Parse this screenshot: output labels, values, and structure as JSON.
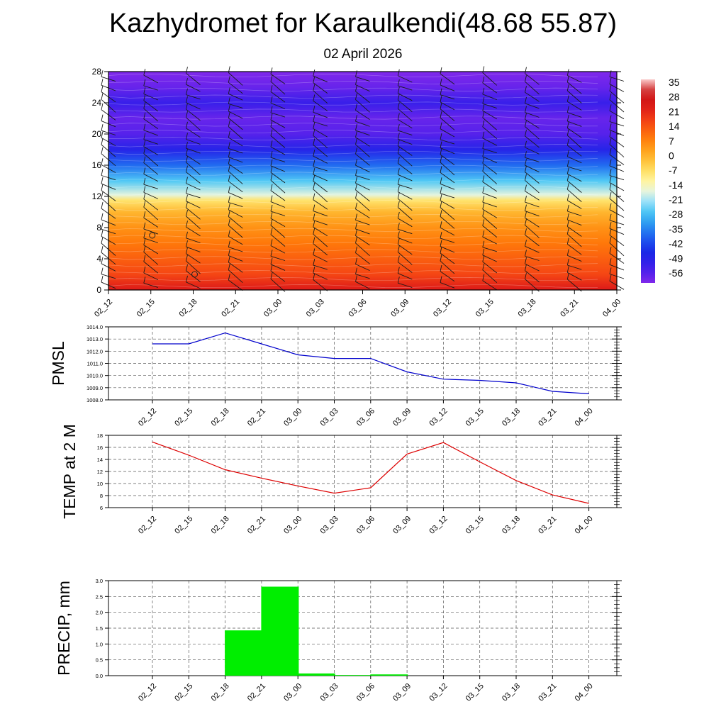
{
  "title": "Kazhydromet for Karaulkendi(48.68 55.87)",
  "subtitle": "02 April 2026",
  "time_labels": [
    "02_12",
    "02_15",
    "02_18",
    "02_21",
    "03_00",
    "03_03",
    "03_06",
    "03_09",
    "03_12",
    "03_15",
    "03_18",
    "03_21",
    "04_00"
  ],
  "chart_data": [
    {
      "type": "heatmap",
      "name": "temperature-wind-cross-section",
      "x": [
        "02_12",
        "02_15",
        "02_18",
        "02_21",
        "03_00",
        "03_03",
        "03_06",
        "03_09",
        "03_12",
        "03_15",
        "03_18",
        "03_21",
        "04_00"
      ],
      "ylim": [
        0,
        28
      ],
      "yticks": [
        "0",
        "4",
        "8",
        "12",
        "16",
        "20",
        "24",
        "28"
      ],
      "colorbar_labels": [
        "35",
        "28",
        "21",
        "14",
        "7",
        "0",
        "-7",
        "-14",
        "-21",
        "-28",
        "-35",
        "-42",
        "-49",
        "-56"
      ],
      "colorbar_range": [
        -63,
        42
      ],
      "temperature_profile": [
        {
          "y": 0,
          "t": 28
        },
        {
          "y": 2,
          "t": 20
        },
        {
          "y": 4,
          "t": 16
        },
        {
          "y": 6,
          "t": 12
        },
        {
          "y": 8,
          "t": 8
        },
        {
          "y": 10,
          "t": 2
        },
        {
          "y": 11.5,
          "t": -6
        },
        {
          "y": 12.2,
          "t": -16
        },
        {
          "y": 14,
          "t": -26
        },
        {
          "y": 16,
          "t": -38
        },
        {
          "y": 18,
          "t": -50
        },
        {
          "y": 20,
          "t": -58
        },
        {
          "y": 22,
          "t": -60
        },
        {
          "y": 24,
          "t": -54
        },
        {
          "y": 26,
          "t": -60
        },
        {
          "y": 28,
          "t": -63
        }
      ],
      "grid": false
    },
    {
      "type": "line",
      "name": "pmsl",
      "ylabel": "PMSL",
      "x": [
        "02_12",
        "02_15",
        "02_18",
        "02_21",
        "03_00",
        "03_03",
        "03_06",
        "03_09",
        "03_12",
        "03_15",
        "03_18",
        "03_21",
        "04_00"
      ],
      "values": [
        1012.6,
        1012.6,
        1013.5,
        1012.6,
        1011.7,
        1011.4,
        1011.4,
        1010.3,
        1009.7,
        1009.6,
        1009.4,
        1008.7,
        1008.5
      ],
      "ylim": [
        1008.0,
        1014.0
      ],
      "yticks": [
        "1008.0",
        "1009.0",
        "1010.0",
        "1011.0",
        "1012.0",
        "1013.0",
        "1014.0"
      ],
      "color": "#0000cc",
      "grid": true
    },
    {
      "type": "line",
      "name": "temp-2m",
      "ylabel": "TEMP at 2 M",
      "x": [
        "02_12",
        "02_15",
        "02_18",
        "02_21",
        "03_00",
        "03_03",
        "03_06",
        "03_09",
        "03_12",
        "03_15",
        "03_18",
        "03_21",
        "04_00"
      ],
      "values": [
        16.9,
        14.7,
        12.3,
        10.9,
        9.6,
        8.4,
        9.3,
        14.9,
        16.8,
        13.6,
        10.5,
        8.1,
        6.7
      ],
      "ylim": [
        6,
        18
      ],
      "yticks": [
        "6",
        "8",
        "10",
        "12",
        "14",
        "16",
        "18"
      ],
      "color": "#dd0000",
      "grid": true
    },
    {
      "type": "bar",
      "name": "precip",
      "ylabel": "PRECIP, mm",
      "categories": [
        "02_12",
        "02_15",
        "02_18",
        "02_21",
        "03_00",
        "03_03",
        "03_06",
        "03_09",
        "03_12",
        "03_15",
        "03_18",
        "03_21",
        "04_00"
      ],
      "values": [
        0,
        0,
        1.43,
        2.81,
        0.07,
        0.02,
        0.04,
        0,
        0,
        0,
        0,
        0,
        0
      ],
      "ylim": [
        0,
        3.0
      ],
      "yticks": [
        "0.0",
        "0.5",
        "1.0",
        "1.5",
        "2.0",
        "2.5",
        "3.0"
      ],
      "color": "#00ee00",
      "grid": true
    }
  ]
}
